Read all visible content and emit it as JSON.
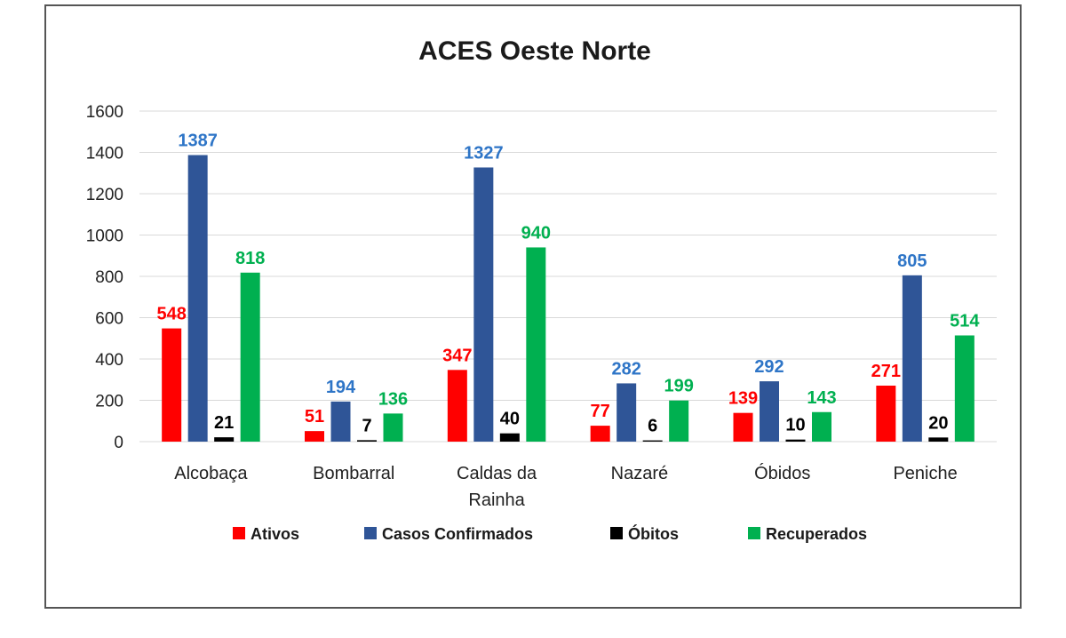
{
  "chart_data": {
    "type": "bar",
    "title": "ACES Oeste Norte",
    "categories": [
      "Alcobaça",
      "Bombarral",
      "Caldas da Rainha",
      "Nazaré",
      "Óbidos",
      "Peniche"
    ],
    "series": [
      {
        "name": "Ativos",
        "color": "#ff0000",
        "values": [
          548,
          51,
          347,
          77,
          139,
          271
        ]
      },
      {
        "name": "Casos Confirmados",
        "color": "#2f5597",
        "label_color": "#2e75c7",
        "values": [
          1387,
          194,
          1327,
          282,
          292,
          805
        ]
      },
      {
        "name": "Óbitos",
        "color": "#000000",
        "values": [
          21,
          7,
          40,
          6,
          10,
          20
        ]
      },
      {
        "name": "Recuperados",
        "color": "#00b050",
        "values": [
          818,
          136,
          940,
          199,
          143,
          514
        ]
      }
    ],
    "ylim": [
      0,
      1600
    ],
    "yticks": [
      0,
      200,
      400,
      600,
      800,
      1000,
      1200,
      1400,
      1600
    ],
    "xlabel": "",
    "ylabel": "",
    "grid": true,
    "legend": "bottom"
  }
}
